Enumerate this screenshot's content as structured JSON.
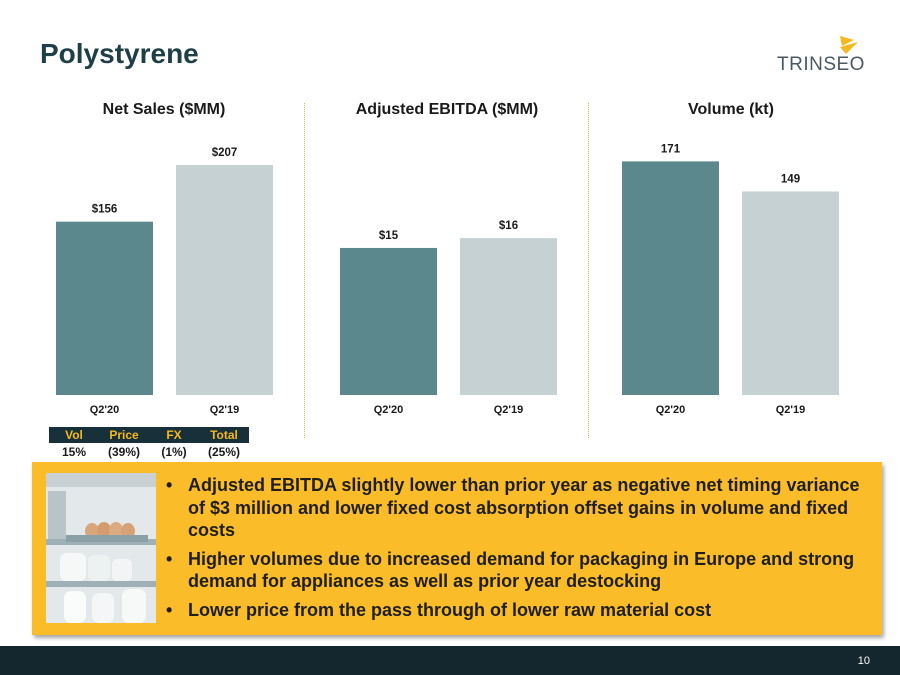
{
  "slide": {
    "title": "Polystyrene",
    "page_number": "10"
  },
  "brand": {
    "logo_text": "TRINSEO",
    "colors": {
      "title": "#1e3f45",
      "accent": "#f4b920",
      "dark": "#14272f",
      "bar_current": "#5a888d",
      "bar_prior": "#c5d1d3"
    }
  },
  "chart_data": [
    {
      "type": "bar",
      "title": "Net Sales ($MM)",
      "categories": [
        "Q2'20",
        "Q2'19"
      ],
      "values": [
        156,
        207
      ],
      "data_labels": [
        "$156",
        "$207"
      ],
      "ylim": [
        0,
        225
      ]
    },
    {
      "type": "bar",
      "title": "Adjusted EBITDA ($MM)",
      "categories": [
        "Q2'20",
        "Q2'19"
      ],
      "values": [
        15,
        16
      ],
      "data_labels": [
        "$15",
        "$16"
      ],
      "ylim": [
        0,
        25.5
      ]
    },
    {
      "type": "bar",
      "title": "Volume (kt)",
      "categories": [
        "Q2'20",
        "Q2'19"
      ],
      "values": [
        171,
        149
      ],
      "data_labels": [
        "171",
        "149"
      ],
      "ylim": [
        0,
        183
      ]
    }
  ],
  "sales_bridge": {
    "headers": [
      "Vol",
      "Price",
      "FX",
      "Total"
    ],
    "values": [
      "15%",
      "(39%)",
      "(1%)",
      "(25%)"
    ]
  },
  "callout": {
    "icon": "refrigerator-photo",
    "bullets": [
      "Adjusted EBITDA slightly lower than prior year as negative net timing variance of $3 million and lower fixed cost absorption offset gains in volume and fixed costs",
      "Higher volumes due to increased demand for packaging in Europe and strong demand for appliances as well as prior year destocking",
      "Lower price from the pass through of lower raw material cost"
    ]
  }
}
